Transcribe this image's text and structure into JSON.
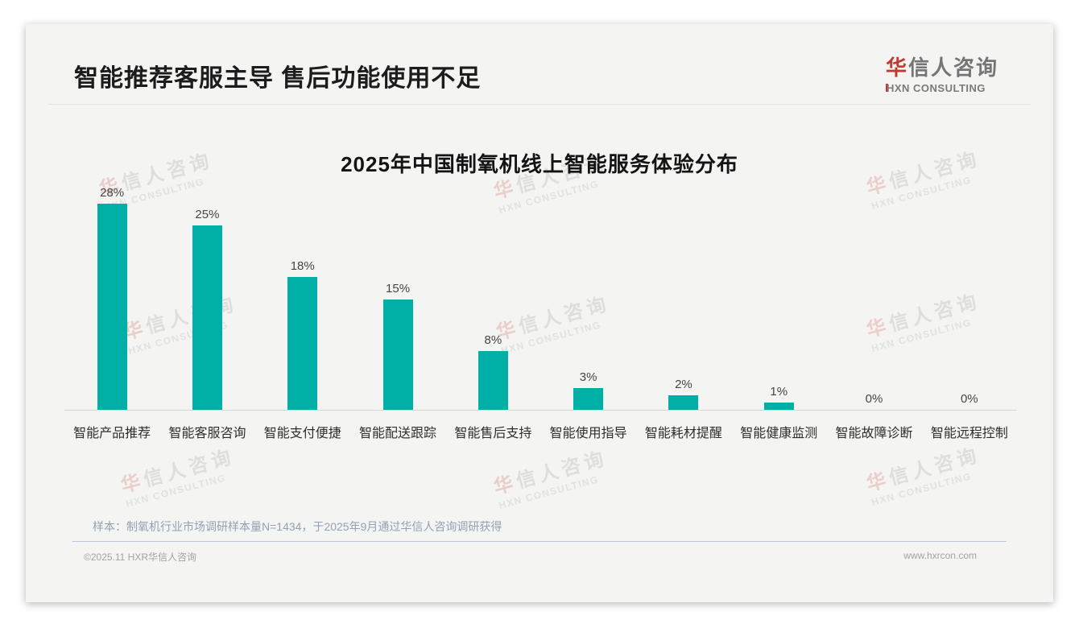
{
  "header": {
    "title": "智能推荐客服主导 售后功能使用不足",
    "logo": {
      "cn_first": "华",
      "cn_rest": "信人咨询",
      "en": "HXN CONSULTING"
    }
  },
  "watermark": {
    "cn_first": "华",
    "cn_rest": "信人咨询",
    "en": "HXN CONSULTING"
  },
  "chart_data": {
    "type": "bar",
    "title": "2025年中国制氧机线上智能服务体验分布",
    "categories": [
      "智能产品推荐",
      "智能客服咨询",
      "智能支付便捷",
      "智能配送跟踪",
      "智能售后支持",
      "智能使用指导",
      "智能耗材提醒",
      "智能健康监测",
      "智能故障诊断",
      "智能远程控制"
    ],
    "values": [
      28,
      25,
      18,
      15,
      8,
      3,
      2,
      1,
      0,
      0
    ],
    "value_labels": [
      "28%",
      "25%",
      "18%",
      "15%",
      "8%",
      "3%",
      "2%",
      "1%",
      "0%",
      "0%"
    ],
    "unit": "%",
    "bar_color": "#00AFA6",
    "ylim": [
      0,
      30
    ],
    "grid": false,
    "legend": false,
    "xlabel": "",
    "ylabel": ""
  },
  "footnote": "样本：制氧机行业市场调研样本量N=1434，于2025年9月通过华信人咨询调研获得",
  "footer": {
    "copyright": "©2025.11 HXR华信人咨询",
    "website": "www.hxrcon.com"
  },
  "colors": {
    "bar": "#00AFA6",
    "accent_red": "#C23A2F",
    "slide_bg": "#F4F4F3",
    "footnote_text": "#95A0B3"
  }
}
